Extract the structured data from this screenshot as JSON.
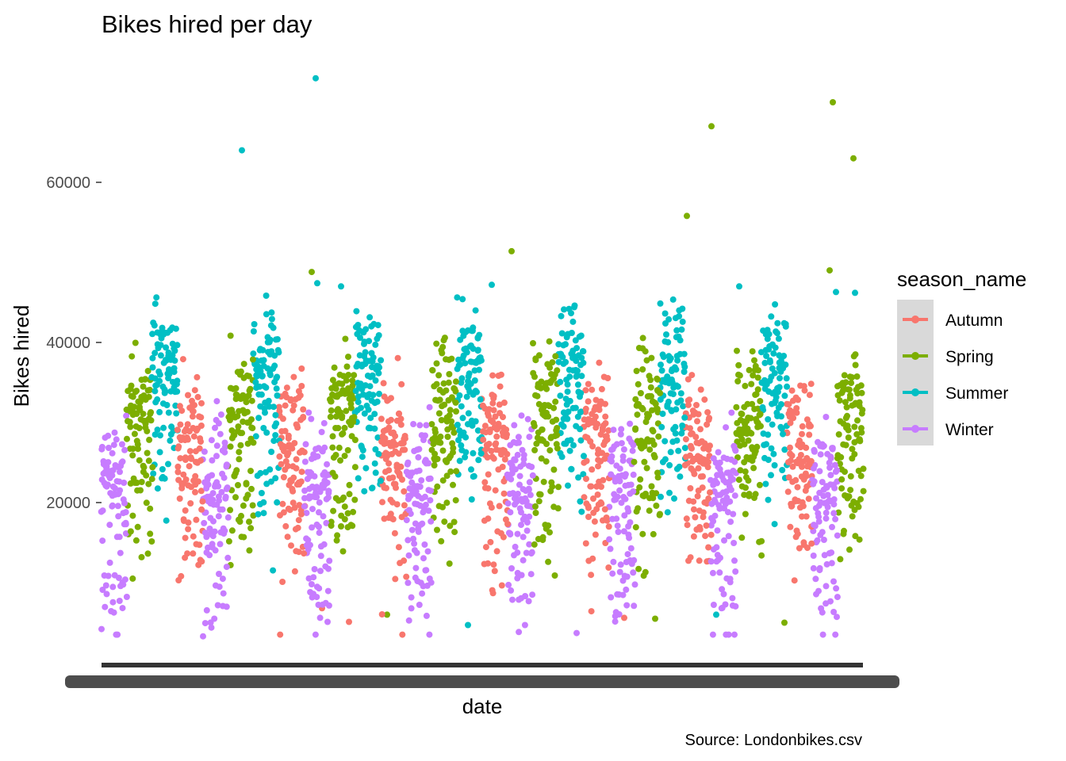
{
  "chart_data": {
    "type": "scatter",
    "title": "Bikes hired per day",
    "xlabel": "date",
    "ylabel": "Bikes hired",
    "caption": "Source: Londonbikes.csv",
    "y_ticks": [
      20000,
      40000,
      60000
    ],
    "y_tick_labels": [
      "20000",
      "40000",
      "60000"
    ],
    "ylim": [
      2000,
      75000
    ],
    "x_tick_labels_overplotted": true,
    "legend": {
      "title": "season_name",
      "placement": "right",
      "entries": [
        "Autumn",
        "Spring",
        "Summer",
        "Winter"
      ]
    },
    "series": [
      {
        "name": "Autumn",
        "color": "#F8766D",
        "values": [
          27000,
          5500,
          6800,
          5100,
          7000,
          10000,
          34000,
          37500,
          39500,
          32000
        ]
      },
      {
        "name": "Spring",
        "color": "#7CAE00",
        "values": [
          9000,
          45300,
          48800,
          51400,
          55800,
          67000,
          70000,
          63000,
          49000,
          5100
        ]
      },
      {
        "name": "Summer",
        "color": "#00BFC4",
        "values": [
          64000,
          73000,
          46000,
          47500,
          47000,
          46000,
          45000,
          44000,
          46000,
          4700
        ]
      },
      {
        "name": "Winter",
        "color": "#C77CFF",
        "values": [
          3300,
          4200,
          6500,
          28000,
          31000,
          36000,
          22000,
          13000,
          8000,
          5000
        ]
      }
    ]
  }
}
